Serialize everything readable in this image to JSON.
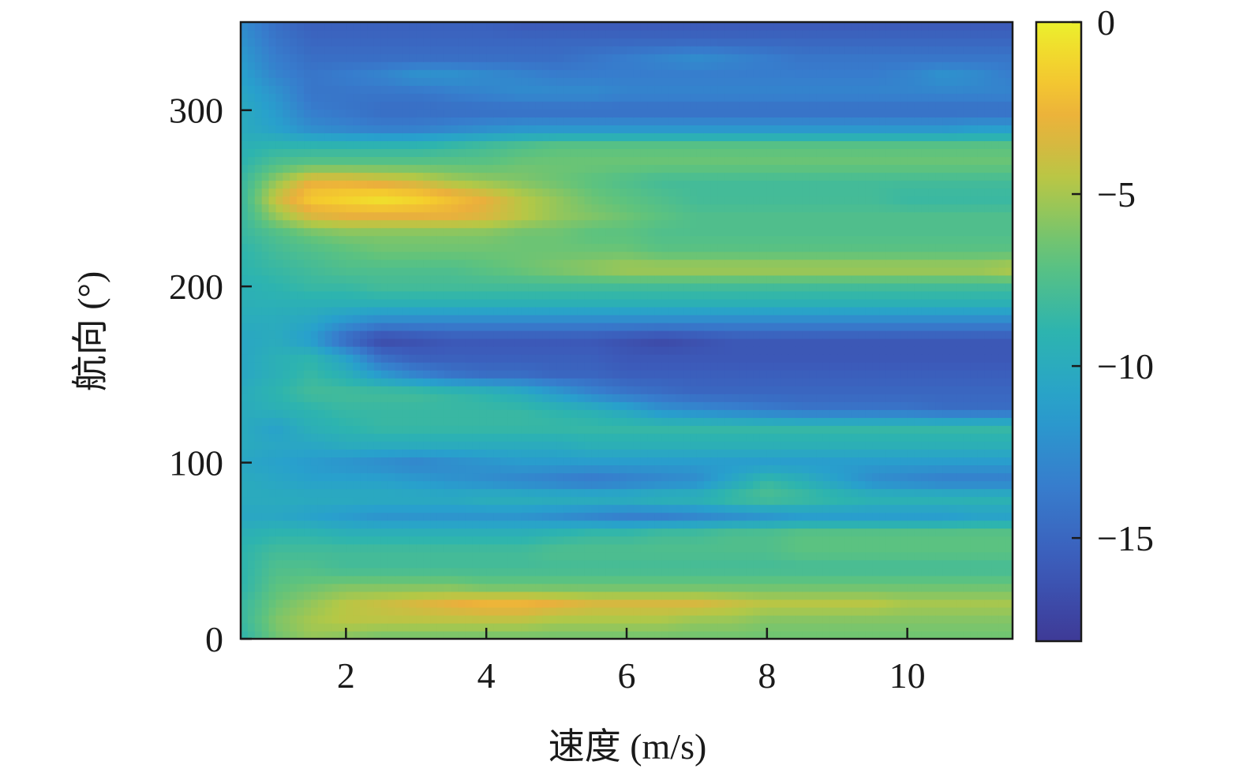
{
  "chart_data": {
    "type": "heatmap",
    "title": "",
    "xlabel": "速度 (m/s)",
    "ylabel": "航向 (°)",
    "xlim": [
      0.5,
      11.5
    ],
    "ylim": [
      0,
      350
    ],
    "x_ticks": [
      2,
      4,
      6,
      8,
      10
    ],
    "x_tick_labels": [
      "2",
      "4",
      "6",
      "8",
      "10"
    ],
    "y_ticks": [
      0,
      100,
      200,
      300
    ],
    "y_tick_labels": [
      "0",
      "100",
      "200",
      "300"
    ],
    "grid": false,
    "colorbar": {
      "colormap": "parula",
      "range": [
        -18,
        0
      ],
      "ticks": [
        0,
        -5,
        -10,
        -15
      ],
      "tick_labels": [
        "0",
        "−5",
        "−10",
        "−15"
      ]
    },
    "x": [
      0.5,
      1,
      1.5,
      2,
      2.5,
      3,
      3.5,
      4,
      4.5,
      5,
      5.5,
      6,
      6.5,
      7,
      7.5,
      8,
      8.5,
      9,
      9.5,
      10,
      10.5,
      11,
      11.5
    ],
    "y": [
      0,
      10,
      20,
      30,
      40,
      50,
      60,
      70,
      80,
      90,
      100,
      110,
      120,
      130,
      140,
      150,
      160,
      170,
      180,
      190,
      200,
      210,
      220,
      230,
      240,
      250,
      260,
      270,
      280,
      290,
      300,
      310,
      320,
      330,
      340,
      350
    ],
    "z": [
      [
        -9,
        -6.5,
        -5.5,
        -6,
        -6.5,
        -6.5,
        -6.5,
        -6.5,
        -6.5,
        -6.5,
        -6.5,
        -6.5,
        -6.5,
        -6.5,
        -6.5,
        -6.5,
        -6.5,
        -6.5,
        -6.5,
        -6.5,
        -6.5,
        -6.5,
        -6.5
      ],
      [
        -8.5,
        -6,
        -5,
        -4.5,
        -4.5,
        -4.5,
        -4.5,
        -4.5,
        -4.5,
        -5,
        -5,
        -5,
        -5,
        -5.5,
        -5.5,
        -6,
        -6,
        -6,
        -6,
        -6,
        -6,
        -6,
        -6
      ],
      [
        -8.5,
        -6.5,
        -5.5,
        -4.5,
        -4,
        -3.5,
        -3,
        -2.5,
        -2.5,
        -3,
        -3.5,
        -3.5,
        -3.5,
        -3.5,
        -4,
        -4.5,
        -4.5,
        -4.5,
        -4.5,
        -5,
        -5,
        -5,
        -5
      ],
      [
        -9,
        -7,
        -6.5,
        -6,
        -6,
        -6,
        -6,
        -6.5,
        -6.5,
        -6.5,
        -6.5,
        -6.5,
        -6.5,
        -6.5,
        -6.5,
        -6.5,
        -6.5,
        -6.5,
        -6.5,
        -6.5,
        -6.5,
        -6.5,
        -6.5
      ],
      [
        -9,
        -7.5,
        -7.5,
        -8,
        -8,
        -8,
        -8,
        -8,
        -8,
        -8,
        -8,
        -8,
        -8,
        -8,
        -8,
        -8,
        -8,
        -8,
        -8,
        -8,
        -8,
        -8,
        -8
      ],
      [
        -9,
        -8,
        -8,
        -8,
        -8,
        -8,
        -8,
        -8,
        -8,
        -7.5,
        -7.5,
        -7.5,
        -7.5,
        -7.5,
        -7.5,
        -7.5,
        -7,
        -7,
        -7,
        -7,
        -7,
        -7,
        -7
      ],
      [
        -9.5,
        -9,
        -9,
        -9.5,
        -9.5,
        -9.5,
        -9.5,
        -9.5,
        -9.5,
        -9,
        -8.5,
        -8.5,
        -8,
        -8,
        -7.5,
        -7.5,
        -7,
        -7,
        -7,
        -7,
        -7,
        -7,
        -7
      ],
      [
        -10.5,
        -10.5,
        -11,
        -11.5,
        -12,
        -12,
        -12,
        -12,
        -12,
        -12.5,
        -13,
        -13.5,
        -13.5,
        -13,
        -12.5,
        -12,
        -11.5,
        -11.5,
        -11.5,
        -11.5,
        -11.5,
        -11,
        -11
      ],
      [
        -10,
        -10,
        -10,
        -10,
        -10,
        -10,
        -10,
        -9.5,
        -9.5,
        -9.5,
        -9.5,
        -9.5,
        -9,
        -9,
        -8,
        -7.5,
        -8,
        -8.5,
        -9,
        -9,
        -9,
        -9,
        -9
      ],
      [
        -10,
        -10.5,
        -11,
        -11,
        -11,
        -11.5,
        -12,
        -12.5,
        -13,
        -13.5,
        -14,
        -13.5,
        -13,
        -12.5,
        -10.5,
        -8.5,
        -9.5,
        -11,
        -12.5,
        -13,
        -13.5,
        -13.5,
        -13.5
      ],
      [
        -10.5,
        -11,
        -11.5,
        -12,
        -12.5,
        -13,
        -12.5,
        -12,
        -11.5,
        -11.5,
        -11.5,
        -11.5,
        -11.5,
        -11.5,
        -11.5,
        -11.5,
        -11.5,
        -11.5,
        -11.5,
        -11.5,
        -11.5,
        -11.5,
        -11.5
      ],
      [
        -10,
        -10.5,
        -10.5,
        -10,
        -10,
        -10,
        -10,
        -10,
        -10,
        -10,
        -9.5,
        -9.5,
        -9.5,
        -9.5,
        -9.5,
        -9.5,
        -9.5,
        -9.5,
        -9.5,
        -9.5,
        -9.5,
        -9.5,
        -9.5
      ],
      [
        -10,
        -11,
        -9.5,
        -9,
        -8.5,
        -8.5,
        -8.5,
        -8.5,
        -8.5,
        -8.5,
        -8.5,
        -8.5,
        -8.5,
        -8.5,
        -8.5,
        -8.5,
        -8.5,
        -8.5,
        -8.5,
        -8.5,
        -8.5,
        -8.5,
        -8.5
      ],
      [
        -10,
        -9.5,
        -9,
        -8.5,
        -8.5,
        -8.5,
        -8.5,
        -8.5,
        -8.5,
        -9,
        -9.5,
        -10.5,
        -12,
        -12.5,
        -13,
        -13.5,
        -14,
        -14,
        -14,
        -14,
        -14.5,
        -14.5,
        -14.5
      ],
      [
        -10,
        -9,
        -8,
        -8,
        -8,
        -8,
        -8.5,
        -9,
        -10,
        -11.5,
        -13,
        -14,
        -14.5,
        -15,
        -15,
        -15,
        -15,
        -15,
        -15,
        -15,
        -15,
        -15,
        -15
      ],
      [
        -10.5,
        -9.5,
        -8.5,
        -9.5,
        -11.5,
        -13,
        -14,
        -14.5,
        -14.5,
        -15,
        -15,
        -15.5,
        -15.5,
        -15.5,
        -15.5,
        -15.5,
        -15.5,
        -15.5,
        -15.5,
        -15.5,
        -15.5,
        -15.5,
        -15.5
      ],
      [
        -10.5,
        -9.5,
        -9,
        -11,
        -14.5,
        -15.5,
        -15.5,
        -15.5,
        -15.5,
        -15.5,
        -15.5,
        -16,
        -16,
        -16,
        -16,
        -16,
        -16,
        -16,
        -16,
        -16,
        -16,
        -16,
        -16
      ],
      [
        -10.5,
        -10,
        -11.5,
        -15,
        -17,
        -16.5,
        -16,
        -16,
        -16,
        -16,
        -16,
        -16.5,
        -17,
        -16.5,
        -16,
        -16,
        -16,
        -16,
        -16,
        -16,
        -16,
        -16,
        -16
      ],
      [
        -10,
        -10,
        -10.5,
        -12,
        -13,
        -13,
        -13,
        -13,
        -13,
        -13,
        -13,
        -13,
        -13,
        -13,
        -13,
        -13,
        -13,
        -13,
        -13,
        -13,
        -13,
        -13,
        -13
      ],
      [
        -9.5,
        -9.5,
        -9.5,
        -9.5,
        -9.5,
        -9.5,
        -9.5,
        -9.5,
        -9.5,
        -9.5,
        -9.5,
        -9.5,
        -9.5,
        -9.5,
        -9.5,
        -9.5,
        -9.5,
        -9.5,
        -9.5,
        -9.5,
        -9.5,
        -9.5,
        -9.5
      ],
      [
        -9.5,
        -9,
        -8.5,
        -8.5,
        -8,
        -8,
        -8,
        -8,
        -8,
        -8,
        -8,
        -8,
        -8,
        -8,
        -8,
        -8,
        -8,
        -8,
        -8,
        -8,
        -8,
        -8,
        -8
      ],
      [
        -9,
        -8.5,
        -8,
        -7.5,
        -7.5,
        -7.5,
        -7.5,
        -7,
        -6.5,
        -6,
        -5.5,
        -5,
        -5,
        -5,
        -5,
        -5,
        -5,
        -5,
        -5,
        -5,
        -5,
        -5,
        -4.5
      ],
      [
        -9,
        -8,
        -7.5,
        -7,
        -6.5,
        -6.5,
        -6.5,
        -6.5,
        -6.5,
        -6.5,
        -6.5,
        -6.5,
        -7,
        -7,
        -7,
        -7,
        -7,
        -7,
        -7,
        -7,
        -7,
        -7,
        -7
      ],
      [
        -8.5,
        -7.5,
        -6.5,
        -6,
        -6,
        -6,
        -6,
        -6,
        -6.5,
        -6.5,
        -7,
        -7,
        -7.5,
        -7.5,
        -7.5,
        -7.5,
        -7.5,
        -7.5,
        -7.5,
        -7.5,
        -7.5,
        -7.5,
        -7.5
      ],
      [
        -8.5,
        -5.5,
        -3.5,
        -3,
        -3,
        -3,
        -3,
        -3.5,
        -4.5,
        -5.5,
        -6,
        -6.5,
        -7,
        -7.5,
        -7.5,
        -7.5,
        -7.5,
        -7.5,
        -7.5,
        -7.5,
        -7.5,
        -7.5,
        -7.5
      ],
      [
        -8.5,
        -4,
        -1.5,
        -1,
        -0.5,
        -1,
        -2,
        -3,
        -4.5,
        -5.5,
        -6.5,
        -7,
        -7.5,
        -8,
        -8,
        -8,
        -8,
        -8,
        -8,
        -8.5,
        -8.5,
        -8.5,
        -8.5
      ],
      [
        -8.5,
        -5.5,
        -3,
        -3,
        -3.5,
        -4,
        -5,
        -5.5,
        -6,
        -6.5,
        -7,
        -7.5,
        -8,
        -8,
        -8,
        -8,
        -8,
        -8,
        -8,
        -8,
        -8,
        -8,
        -8
      ],
      [
        -9,
        -7.5,
        -7,
        -7,
        -7,
        -7,
        -7,
        -7,
        -6.5,
        -6.5,
        -6.5,
        -6.5,
        -6.5,
        -6.5,
        -6.5,
        -6.5,
        -6.5,
        -6.5,
        -6.5,
        -6.5,
        -6.5,
        -6.5,
        -6.5
      ],
      [
        -9.5,
        -9,
        -9,
        -9,
        -9,
        -9,
        -8.5,
        -8,
        -7.5,
        -7,
        -7,
        -7,
        -7,
        -7,
        -7,
        -7,
        -7,
        -7,
        -7,
        -7,
        -7,
        -7,
        -7
      ],
      [
        -10,
        -11,
        -12.5,
        -13,
        -13.5,
        -13.5,
        -13,
        -12.5,
        -12,
        -12,
        -12,
        -12,
        -12,
        -12,
        -12,
        -12,
        -12,
        -12,
        -12,
        -12,
        -12,
        -11.5,
        -11.5
      ],
      [
        -10,
        -11.5,
        -13.5,
        -14,
        -14.5,
        -14.5,
        -14.5,
        -14.5,
        -14.5,
        -14.5,
        -14.5,
        -14.5,
        -14.5,
        -14.5,
        -14.5,
        -14.5,
        -14.5,
        -14.5,
        -14.5,
        -14.5,
        -14.5,
        -14.5,
        -14.5
      ],
      [
        -10.5,
        -12,
        -14,
        -14,
        -14,
        -14,
        -13.5,
        -13,
        -12.5,
        -12.5,
        -12.5,
        -13,
        -13,
        -13,
        -13,
        -13,
        -13,
        -13,
        -13,
        -13,
        -13,
        -13,
        -13
      ],
      [
        -11,
        -13,
        -14,
        -13.5,
        -13,
        -12,
        -12,
        -12.5,
        -13,
        -13.5,
        -13.5,
        -13.5,
        -13.5,
        -13.5,
        -13.5,
        -13.5,
        -13.5,
        -13.5,
        -13.5,
        -13,
        -12,
        -12.5,
        -13.5
      ],
      [
        -11.5,
        -13.5,
        -14.5,
        -14.5,
        -14.5,
        -14.5,
        -14.5,
        -14.5,
        -14.5,
        -14.5,
        -14,
        -13.5,
        -13,
        -12.5,
        -13,
        -13.5,
        -14,
        -14,
        -14,
        -14,
        -14,
        -14,
        -14
      ],
      [
        -12,
        -14,
        -15,
        -15,
        -15,
        -15,
        -15,
        -15,
        -15,
        -15,
        -15,
        -15,
        -15,
        -15,
        -15,
        -15,
        -15,
        -15,
        -15,
        -15,
        -15,
        -15,
        -15
      ],
      [
        -12.5,
        -14.5,
        -15.5,
        -15.5,
        -15.5,
        -15.5,
        -15.5,
        -15.5,
        -16,
        -16,
        -16,
        -16,
        -16,
        -16,
        -16,
        -16,
        -16,
        -16,
        -16,
        -16,
        -16,
        -16,
        -16
      ]
    ]
  }
}
